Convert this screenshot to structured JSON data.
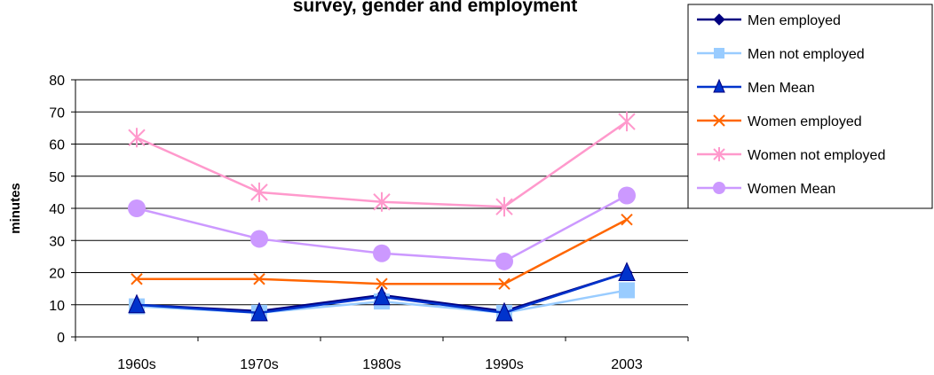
{
  "chart_data": {
    "type": "line",
    "title": "survey, gender and employment",
    "y_label": "minutes",
    "categories": [
      "1960s",
      "1970s",
      "1980s",
      "1990s",
      "2003"
    ],
    "ylim": [
      0,
      80
    ],
    "yticks": [
      0,
      10,
      20,
      30,
      40,
      50,
      60,
      70,
      80
    ],
    "grid": true,
    "legend": "top-right",
    "series": [
      {
        "name": "Men employed",
        "color": "#000080",
        "marker": "diamond",
        "values": [
          10,
          8,
          13,
          8,
          20
        ]
      },
      {
        "name": "Men not employed",
        "color": "#99ccff",
        "marker": "square",
        "values": [
          9.5,
          7.5,
          11,
          7.5,
          14.5
        ]
      },
      {
        "name": "Men Mean",
        "color": "#0033cc",
        "marker": "triangle",
        "values": [
          10,
          7.5,
          12.5,
          7.5,
          20
        ]
      },
      {
        "name": "Women employed",
        "color": "#ff6600",
        "marker": "x",
        "values": [
          18,
          18,
          16.5,
          16.5,
          36.5
        ]
      },
      {
        "name": "Women not employed",
        "color": "#ff99cc",
        "marker": "star",
        "values": [
          62,
          45,
          42,
          40.5,
          67
        ]
      },
      {
        "name": "Women Mean",
        "color": "#cc99ff",
        "marker": "circle",
        "values": [
          40,
          30.5,
          26,
          23.5,
          44
        ]
      }
    ]
  }
}
